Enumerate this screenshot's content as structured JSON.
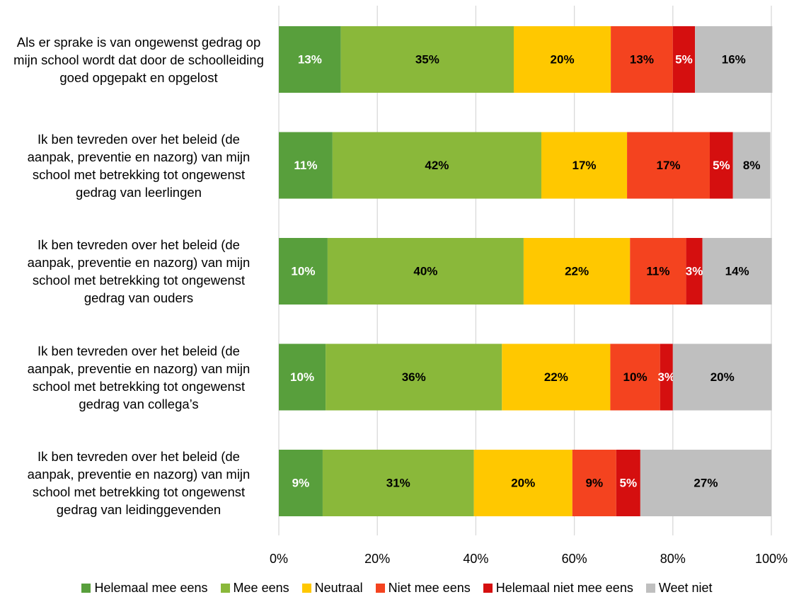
{
  "chart_data": {
    "type": "stacked-barh",
    "categories": [
      "Als er sprake is van ongewenst gedrag op mijn school wordt dat door de schoolleiding goed opgepakt en opgelost",
      "Ik ben tevreden over het beleid (de aanpak, preventie en nazorg) van mijn school met betrekking tot ongewenst gedrag van leerlingen",
      "Ik ben tevreden over het beleid (de aanpak, preventie en nazorg) van mijn school met betrekking tot ongewenst gedrag van ouders",
      "Ik ben tevreden over het beleid (de aanpak, preventie en nazorg) van mijn school met betrekking tot ongewenst gedrag van collega’s",
      "Ik ben tevreden over het beleid (de aanpak, preventie en nazorg) van mijn school met betrekking tot ongewenst gedrag van leidinggevenden"
    ],
    "series": [
      {
        "name": "Helemaal mee eens",
        "color": "#589f3c",
        "values": [
          12.6,
          10.9,
          9.9,
          9.5,
          8.9
        ],
        "value_labels": [
          "13%",
          "11%",
          "10%",
          "10%",
          "9%"
        ]
      },
      {
        "name": "Mee eens",
        "color": "#8ab83a",
        "values": [
          35.1,
          42.4,
          39.8,
          35.8,
          30.7
        ],
        "value_labels": [
          "35%",
          "42%",
          "40%",
          "36%",
          "31%"
        ]
      },
      {
        "name": "Neutraal",
        "color": "#ffc800",
        "values": [
          19.7,
          17.4,
          21.6,
          22.0,
          20.0
        ],
        "value_labels": [
          "20%",
          "17%",
          "22%",
          "22%",
          "20%"
        ]
      },
      {
        "name": "Niet mee eens",
        "color": "#f4431f",
        "values": [
          12.6,
          16.8,
          11.4,
          10.1,
          8.9
        ],
        "value_labels": [
          "13%",
          "17%",
          "11%",
          "10%",
          "9%"
        ]
      },
      {
        "name": "Helemaal niet mee eens",
        "color": "#d50f0f",
        "values": [
          4.5,
          4.7,
          3.3,
          2.6,
          4.9
        ],
        "value_labels": [
          "5%",
          "5%",
          "3%",
          "3%",
          "5%"
        ]
      },
      {
        "name": "Weet niet",
        "color": "#bfbfbf",
        "values": [
          15.7,
          7.6,
          14.1,
          20.1,
          26.6
        ],
        "value_labels": [
          "16%",
          "8%",
          "14%",
          "20%",
          "27%"
        ]
      }
    ],
    "xlim": [
      0,
      100
    ],
    "xticks": [
      {
        "value": 0,
        "label": "0%"
      },
      {
        "value": 20,
        "label": "20%"
      },
      {
        "value": 40,
        "label": "40%"
      },
      {
        "value": 60,
        "label": "60%"
      },
      {
        "value": 80,
        "label": "80%"
      },
      {
        "value": 100,
        "label": "100%"
      }
    ],
    "grid": true
  }
}
